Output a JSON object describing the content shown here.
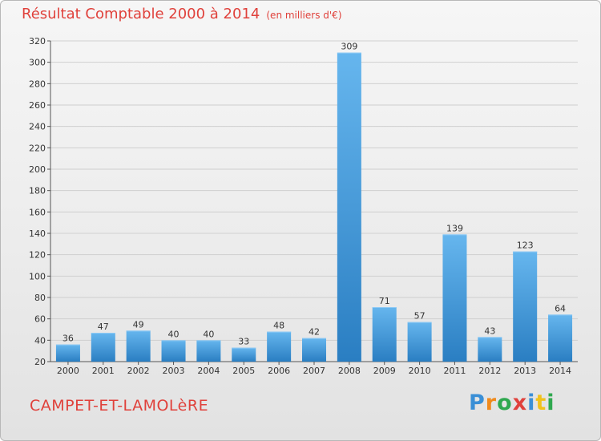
{
  "header": {
    "title": "Résultat Comptable 2000 à 2014",
    "unit": "(en milliers d'€)"
  },
  "footer": {
    "town": "CAMPET-ET-LAMOLèRE",
    "logo": [
      "P",
      "r",
      "o",
      "x",
      "i",
      "t",
      "i"
    ]
  },
  "colors": {
    "bar_top": "#66b6ee",
    "bar_bottom": "#2a7ec2",
    "title": "#e0413b",
    "grid": "#cfcfcf"
  },
  "chart_data": {
    "type": "bar",
    "title": "Résultat Comptable 2000 à 2014 (en milliers d'€)",
    "categories": [
      "2000",
      "2001",
      "2002",
      "2003",
      "2004",
      "2005",
      "2006",
      "2007",
      "2008",
      "2009",
      "2010",
      "2011",
      "2012",
      "2013",
      "2014"
    ],
    "values": [
      36,
      47,
      49,
      40,
      40,
      33,
      48,
      42,
      309,
      71,
      57,
      139,
      43,
      123,
      64
    ],
    "ylim": [
      20,
      320
    ],
    "yticks": [
      20,
      40,
      60,
      80,
      100,
      120,
      140,
      160,
      180,
      200,
      220,
      240,
      260,
      280,
      300,
      320
    ],
    "xlabel": "",
    "ylabel": "",
    "grid": true
  }
}
